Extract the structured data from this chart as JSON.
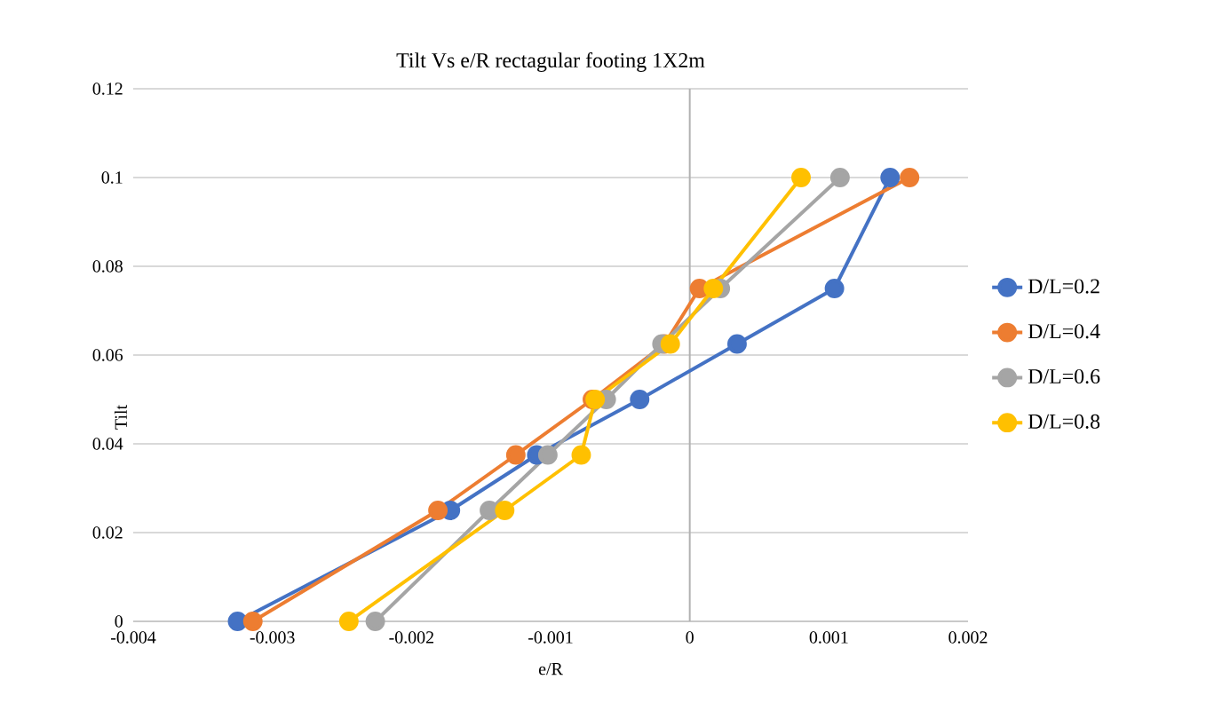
{
  "chart_data": {
    "type": "line",
    "title": "Tilt Vs e/R rectagular footing 1X2m",
    "xlabel": "e/R",
    "ylabel": "Tilt",
    "xlim": [
      -0.004,
      0.002
    ],
    "xticks": [
      -0.004,
      -0.003,
      -0.002,
      -0.001,
      0,
      0.001,
      0.002
    ],
    "ylim": [
      0,
      0.12
    ],
    "yticks": [
      0,
      0.02,
      0.04,
      0.06,
      0.08,
      0.1,
      0.12
    ],
    "grid": "y",
    "legend": "right",
    "marker": "circle",
    "line_style": "solid",
    "series": [
      {
        "name": "D/L=0.2",
        "color": "#4472c4",
        "x": [
          -0.00325,
          -0.00172,
          -0.0011,
          -0.00036,
          0.00034,
          0.00104,
          0.00144
        ],
        "values": [
          0,
          0.025,
          0.0375,
          0.05,
          0.0625,
          0.075,
          0.1
        ]
      },
      {
        "name": "D/L=0.4",
        "color": "#ed7d31",
        "x": [
          -0.00314,
          -0.00181,
          -0.00125,
          -0.0007,
          -0.00018,
          7e-05,
          0.00158
        ],
        "values": [
          0,
          0.025,
          0.0375,
          0.05,
          0.0625,
          0.075,
          0.1
        ]
      },
      {
        "name": "D/L=0.6",
        "color": "#a5a5a5",
        "x": [
          -0.00226,
          -0.00144,
          -0.00102,
          -0.0006,
          -0.0002,
          0.00022,
          0.00108
        ],
        "values": [
          0,
          0.025,
          0.0375,
          0.05,
          0.0625,
          0.075,
          0.1
        ]
      },
      {
        "name": "D/L=0.8",
        "color": "#ffc000",
        "x": [
          -0.00245,
          -0.00133,
          -0.00078,
          -0.00068,
          -0.00014,
          0.00017,
          0.0008
        ],
        "values": [
          0,
          0.025,
          0.0375,
          0.05,
          0.0625,
          0.075,
          0.1
        ]
      }
    ]
  }
}
